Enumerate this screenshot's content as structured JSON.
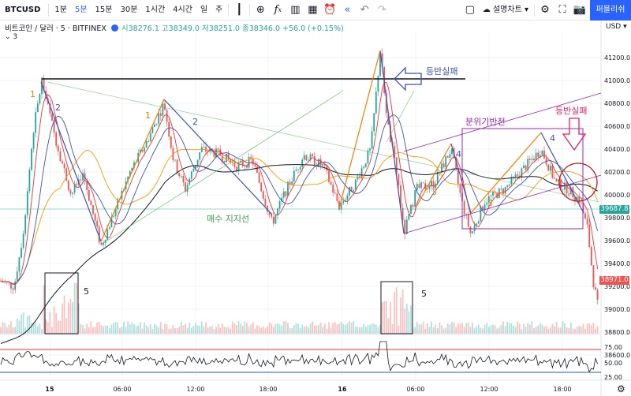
{
  "toolbar": {
    "symbol": "BTCUSD",
    "intervals": [
      "1분",
      "5분",
      "15분",
      "30분",
      "1시간",
      "4시간",
      "일",
      "주"
    ],
    "active_interval": "5분",
    "chart_type_label": "설명차트",
    "publish_label": "퍼블리쉬"
  },
  "legend": {
    "name": "비트코인 / 달러 · 5 · BITFINEX",
    "ohlc": "시38276.1 고38349.0 저38251.0 종38346.0 +56.0 (+0.15%)",
    "indicator_count": "3"
  },
  "price_axis": {
    "currency": "USD",
    "ticks": [
      "41200.0",
      "41000.0",
      "40800.0",
      "40600.0",
      "40400.0",
      "40200.0",
      "40000.0",
      "39800.0",
      "39600.0",
      "39400.0",
      "39200.0",
      "39000.0",
      "38800.0",
      "38600.0"
    ],
    "current_green": "39687.8",
    "current_red": "38971.0"
  },
  "rsi_axis": {
    "ticks": [
      "75.00",
      "50.00",
      "25.00"
    ]
  },
  "time_axis": {
    "ticks": [
      "15",
      "06:00",
      "12:00",
      "18:00",
      "16",
      "06:00",
      "12:00",
      "18:00"
    ]
  },
  "annotations": {
    "breakout_fail_1": "등반실패",
    "breakout_fail_2": "등반실패",
    "support_line": "매수 지지선",
    "distribution_reversal": "분위기반전",
    "wave_labels": [
      "1",
      "2",
      "1",
      "2",
      "3",
      "4",
      "3",
      "4"
    ],
    "volume_box_label_1": "5",
    "volume_box_label_2": "5"
  },
  "colors": {
    "up": "#26a69a",
    "down": "#ef5350",
    "accent": "#2962ff",
    "orange": "#f57c00",
    "purple": "#9c27b0",
    "green_line": "#4caf50",
    "red_annot": "#e91e63"
  }
}
